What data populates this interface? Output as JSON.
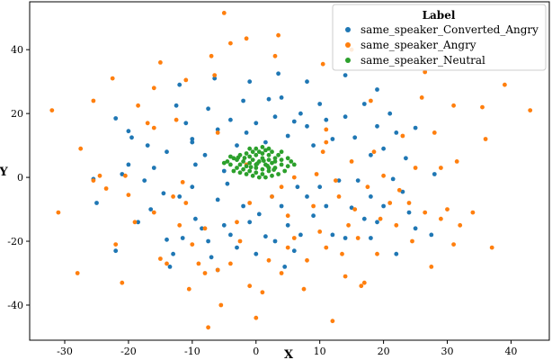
{
  "chart_data": {
    "type": "scatter",
    "xlabel": "X",
    "ylabel": "Y",
    "xlim": [
      -35.5,
      46
    ],
    "ylim": [
      -51,
      55
    ],
    "x_ticks": [
      -30,
      -20,
      -10,
      0,
      10,
      20,
      30,
      40
    ],
    "y_ticks": [
      -40,
      -20,
      0,
      20,
      40
    ],
    "grid": false,
    "legend": {
      "title": "Label",
      "placement": "top-right"
    },
    "series": [
      {
        "name": "same_speaker_Converted_Angry",
        "color": "#1f77b4",
        "points": [
          [
            -25.5,
            -0.5
          ],
          [
            -25,
            -8
          ],
          [
            -21,
            1
          ],
          [
            -20,
            4
          ],
          [
            -17.5,
            -1
          ],
          [
            -16.5,
            -10
          ],
          [
            -14.5,
            -5
          ],
          [
            -14,
            -19.5
          ],
          [
            -13,
            -24
          ],
          [
            -11.5,
            -19
          ],
          [
            -10,
            -3
          ],
          [
            -9.5,
            -13
          ],
          [
            -8.5,
            -16
          ],
          [
            -7.5,
            -20
          ],
          [
            -7,
            -25
          ],
          [
            -6,
            -7
          ],
          [
            -5,
            -15
          ],
          [
            -4,
            -18
          ],
          [
            -3,
            -22
          ],
          [
            -2,
            -9
          ],
          [
            -1,
            -14
          ],
          [
            0,
            -24
          ],
          [
            0.5,
            -11.5
          ],
          [
            1.5,
            -18.5
          ],
          [
            3,
            -20
          ],
          [
            4,
            -9
          ],
          [
            5,
            -15
          ],
          [
            6,
            -23
          ],
          [
            7,
            -18
          ],
          [
            8,
            -6
          ],
          [
            9,
            -12
          ],
          [
            10,
            -3
          ],
          [
            11,
            -9
          ],
          [
            13,
            -1
          ],
          [
            14,
            -19
          ],
          [
            15,
            -9.5
          ],
          [
            16,
            -1
          ],
          [
            17,
            -13
          ],
          [
            18,
            -6
          ],
          [
            19,
            -14
          ],
          [
            20,
            -9
          ],
          [
            21.5,
            -0.5
          ],
          [
            23,
            -4.5
          ],
          [
            24,
            -11
          ],
          [
            25,
            -16
          ],
          [
            27.5,
            -18
          ],
          [
            28,
            1
          ],
          [
            -22,
            -23
          ],
          [
            -12,
            -6
          ],
          [
            -6,
            -29
          ],
          [
            2.5,
            -6
          ],
          [
            12,
            -18
          ],
          [
            22,
            -24
          ],
          [
            -18.5,
            -14
          ],
          [
            -4.5,
            -2
          ],
          [
            6.5,
            -3
          ],
          [
            18,
            -19
          ],
          [
            -13.5,
            -28
          ],
          [
            4.5,
            -28
          ],
          [
            -22,
            18.5
          ],
          [
            -20,
            14.5
          ],
          [
            -19.5,
            12.5
          ],
          [
            -17,
            10
          ],
          [
            -16,
            3
          ],
          [
            -14,
            8
          ],
          [
            -12.5,
            22.5
          ],
          [
            -11,
            17
          ],
          [
            -10,
            11
          ],
          [
            -9.5,
            4
          ],
          [
            -8,
            7
          ],
          [
            -7.5,
            21.5
          ],
          [
            -6,
            15
          ],
          [
            -5,
            2
          ],
          [
            -4,
            18
          ],
          [
            -3,
            10
          ],
          [
            -2,
            24
          ],
          [
            -1.5,
            14
          ],
          [
            0,
            17
          ],
          [
            1.5,
            11
          ],
          [
            2,
            24.5
          ],
          [
            3,
            19
          ],
          [
            4,
            25
          ],
          [
            5,
            13
          ],
          [
            6,
            17.5
          ],
          [
            7,
            20
          ],
          [
            8,
            16
          ],
          [
            9,
            10
          ],
          [
            10,
            23
          ],
          [
            11,
            18
          ],
          [
            12,
            12
          ],
          [
            14,
            19
          ],
          [
            15.5,
            12.5
          ],
          [
            17,
            23
          ],
          [
            18,
            7
          ],
          [
            19,
            16
          ],
          [
            20,
            9
          ],
          [
            22,
            14
          ],
          [
            23.5,
            6
          ],
          [
            25,
            15.5
          ],
          [
            -12,
            29
          ],
          [
            -1,
            30
          ],
          [
            3.5,
            32.5
          ],
          [
            8,
            30
          ],
          [
            14,
            32
          ],
          [
            19,
            27.5
          ],
          [
            -6.5,
            31
          ],
          [
            -10,
            12
          ],
          [
            21,
            20
          ]
        ]
      },
      {
        "name": "same_speaker_Angry",
        "color": "#ff7f0e",
        "points": [
          [
            -5,
            51.5
          ],
          [
            -4,
            42
          ],
          [
            -7,
            38
          ],
          [
            -6.5,
            32
          ],
          [
            -16,
            28
          ],
          [
            -11,
            30.5
          ],
          [
            -15,
            36
          ],
          [
            -22.5,
            31
          ],
          [
            -25.5,
            24
          ],
          [
            -32,
            21
          ],
          [
            -27.5,
            9
          ],
          [
            -31,
            -11
          ],
          [
            -25.5,
            -1
          ],
          [
            -24.5,
            0.5
          ],
          [
            -23.5,
            -3.5
          ],
          [
            -20.5,
            0.5
          ],
          [
            -20,
            -5.5
          ],
          [
            -19,
            -14
          ],
          [
            -18.5,
            22.5
          ],
          [
            -17,
            17
          ],
          [
            -16,
            -11
          ],
          [
            -16,
            15.5
          ],
          [
            -15,
            -25.5
          ],
          [
            -13,
            -6
          ],
          [
            -12.5,
            18
          ],
          [
            -12,
            -15
          ],
          [
            -11.5,
            -1.5
          ],
          [
            -11,
            -8
          ],
          [
            -10,
            -21
          ],
          [
            -10.5,
            -35
          ],
          [
            -9,
            -27
          ],
          [
            -7.5,
            -47
          ],
          [
            -6,
            -29
          ],
          [
            -6,
            14
          ],
          [
            -5.5,
            -40
          ],
          [
            -4,
            -27
          ],
          [
            -3,
            -14
          ],
          [
            -2.5,
            -20
          ],
          [
            -1,
            -34
          ],
          [
            -1.5,
            4
          ],
          [
            0,
            -44
          ],
          [
            1,
            -36
          ],
          [
            2,
            -26
          ],
          [
            2.5,
            -6
          ],
          [
            3,
            38
          ],
          [
            3.5,
            44.5
          ],
          [
            4,
            -30
          ],
          [
            5,
            -12
          ],
          [
            6,
            -19
          ],
          [
            7.5,
            -35
          ],
          [
            8,
            -26
          ],
          [
            9,
            -9
          ],
          [
            9.5,
            1
          ],
          [
            10,
            -17
          ],
          [
            10.5,
            8
          ],
          [
            11,
            11
          ],
          [
            11,
            15
          ],
          [
            12,
            -45
          ],
          [
            12.5,
            -1
          ],
          [
            13,
            -6
          ],
          [
            13.5,
            -24
          ],
          [
            14,
            -31
          ],
          [
            14.5,
            -15
          ],
          [
            15,
            5
          ],
          [
            15.5,
            -10
          ],
          [
            16,
            -19
          ],
          [
            16.5,
            -34
          ],
          [
            17,
            -33
          ],
          [
            17.5,
            -3
          ],
          [
            18,
            24
          ],
          [
            18.5,
            8
          ],
          [
            19,
            -24
          ],
          [
            19.5,
            -13
          ],
          [
            20,
            0.5
          ],
          [
            21,
            -8
          ],
          [
            22,
            -15
          ],
          [
            22.5,
            -4
          ],
          [
            23,
            13
          ],
          [
            24,
            -8
          ],
          [
            24.5,
            -20
          ],
          [
            25,
            3
          ],
          [
            26,
            25
          ],
          [
            26.5,
            -11
          ],
          [
            27.5,
            -28
          ],
          [
            28,
            14
          ],
          [
            29,
            3
          ],
          [
            29,
            -13
          ],
          [
            30,
            -10
          ],
          [
            31,
            -21
          ],
          [
            31.5,
            5
          ],
          [
            32,
            -15
          ],
          [
            34,
            -11
          ],
          [
            35.5,
            22
          ],
          [
            36,
            12
          ],
          [
            37,
            -22
          ],
          [
            39,
            29
          ],
          [
            43,
            21
          ],
          [
            -14,
            -27
          ],
          [
            -28,
            -30
          ],
          [
            -21,
            -33
          ],
          [
            -22,
            -21
          ],
          [
            -8,
            -30
          ],
          [
            -1,
            -8
          ],
          [
            4,
            -3
          ],
          [
            6,
            0
          ],
          [
            -8,
            -16
          ],
          [
            11,
            -22
          ],
          [
            5,
            -22
          ],
          [
            26.5,
            33
          ],
          [
            31,
            22.5
          ],
          [
            10.5,
            35.5
          ],
          [
            -1.5,
            43.5
          ],
          [
            15,
            40
          ]
        ]
      },
      {
        "name": "same_speaker_Neutral",
        "color": "#2ca02c",
        "points": [
          [
            0,
            4
          ],
          [
            0.5,
            5
          ],
          [
            1,
            6
          ],
          [
            1.5,
            4
          ],
          [
            2,
            5.5
          ],
          [
            -0.5,
            5.5
          ],
          [
            -1,
            4.5
          ],
          [
            -1.5,
            3.5
          ],
          [
            0,
            3
          ],
          [
            1,
            2.5
          ],
          [
            2,
            3
          ],
          [
            2.5,
            4.5
          ],
          [
            3,
            5
          ],
          [
            3,
            6
          ],
          [
            2,
            7
          ],
          [
            1,
            7.5
          ],
          [
            0,
            7
          ],
          [
            -1,
            6.5
          ],
          [
            -2,
            5
          ],
          [
            -2.5,
            4
          ],
          [
            -3,
            5.5
          ],
          [
            -3.5,
            6
          ],
          [
            -2,
            2.5
          ],
          [
            -1,
            2
          ],
          [
            0,
            1.5
          ],
          [
            1,
            1
          ],
          [
            2,
            2
          ],
          [
            3,
            3
          ],
          [
            4,
            4
          ],
          [
            4,
            5.5
          ],
          [
            3.5,
            7
          ],
          [
            2.5,
            8
          ],
          [
            1.5,
            8.5
          ],
          [
            0.5,
            8
          ],
          [
            -0.5,
            8
          ],
          [
            -1.5,
            7.5
          ],
          [
            -2.5,
            7
          ],
          [
            -3,
            3
          ],
          [
            -4,
            4
          ],
          [
            -4.5,
            5
          ],
          [
            -5,
            4.5
          ],
          [
            -4,
            6.5
          ],
          [
            5,
            3.5
          ],
          [
            5,
            6
          ],
          [
            4.5,
            2
          ],
          [
            3.5,
            1
          ],
          [
            2.5,
            0.5
          ],
          [
            1.5,
            0
          ],
          [
            0.5,
            0
          ],
          [
            -0.5,
            0.5
          ],
          [
            -1.5,
            1
          ],
          [
            -2.5,
            1.5
          ],
          [
            -3.5,
            2
          ],
          [
            0,
            9
          ],
          [
            1,
            9.5
          ],
          [
            2,
            9
          ],
          [
            -1,
            9
          ],
          [
            4,
            8
          ],
          [
            5.5,
            5
          ],
          [
            6,
            4
          ],
          [
            0.2,
            4.3
          ],
          [
            1.2,
            5.2
          ],
          [
            -0.8,
            3.2
          ],
          [
            1.8,
            3.6
          ],
          [
            -1.8,
            6.1
          ],
          [
            2.8,
            2.4
          ],
          [
            -2.8,
            6.2
          ]
        ]
      }
    ]
  }
}
